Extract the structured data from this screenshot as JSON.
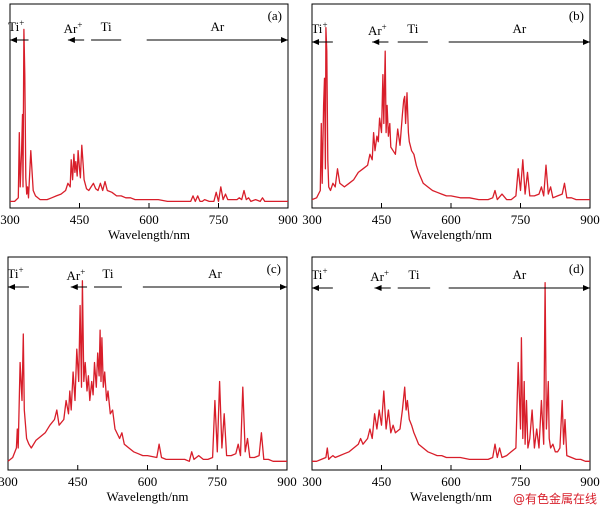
{
  "watermark": "@有色金属在线",
  "chart_data": [
    {
      "type": "line",
      "letter": "(a)",
      "xlabel": "Wavelength/nm",
      "ylabel": "",
      "xlim": [
        300,
        900
      ],
      "xticks": [
        "300",
        "450",
        "600",
        "750",
        "900"
      ],
      "grid": false,
      "series_color": "#d81e2a",
      "regions": [
        {
          "label": "Ti",
          "sup": "+",
          "from": 340,
          "to": 300,
          "arrowhead": "left"
        },
        {
          "label": "Ar",
          "sup": "+",
          "from": 460,
          "to": 425,
          "arrowhead": "left"
        },
        {
          "label": "Ti",
          "sup": "",
          "from": 475,
          "to": 540,
          "arrowhead": "none"
        },
        {
          "label": "Ar",
          "sup": "",
          "from": 595,
          "to": 900,
          "arrowhead": "right"
        }
      ],
      "baseline": 0.02,
      "x": [
        300,
        310,
        318,
        320,
        322,
        325,
        327,
        328,
        330,
        332,
        334,
        336,
        338,
        340,
        345,
        350,
        355,
        360,
        365,
        370,
        380,
        390,
        400,
        410,
        420,
        425,
        430,
        432,
        435,
        438,
        440,
        442,
        445,
        447,
        450,
        452,
        455,
        458,
        460,
        465,
        470,
        475,
        480,
        485,
        490,
        495,
        500,
        505,
        510,
        520,
        530,
        540,
        550,
        560,
        570,
        580,
        590,
        600,
        620,
        640,
        660,
        680,
        690,
        695,
        700,
        705,
        710,
        715,
        720,
        730,
        740,
        745,
        750,
        755,
        760,
        765,
        770,
        780,
        790,
        795,
        800,
        805,
        810,
        815,
        820,
        830,
        840,
        845,
        850,
        860,
        870,
        880,
        890,
        900
      ],
      "y": [
        0.02,
        0.02,
        0.04,
        0.4,
        0.1,
        0.3,
        0.5,
        0.1,
        0.97,
        0.72,
        0.15,
        0.06,
        0.1,
        0.04,
        0.3,
        0.08,
        0.05,
        0.04,
        0.03,
        0.03,
        0.03,
        0.04,
        0.05,
        0.06,
        0.08,
        0.12,
        0.1,
        0.25,
        0.14,
        0.28,
        0.18,
        0.24,
        0.16,
        0.3,
        0.2,
        0.15,
        0.33,
        0.22,
        0.14,
        0.09,
        0.08,
        0.1,
        0.12,
        0.09,
        0.08,
        0.12,
        0.08,
        0.13,
        0.08,
        0.07,
        0.05,
        0.05,
        0.04,
        0.04,
        0.03,
        0.03,
        0.03,
        0.03,
        0.03,
        0.02,
        0.02,
        0.02,
        0.02,
        0.05,
        0.02,
        0.05,
        0.02,
        0.02,
        0.03,
        0.02,
        0.02,
        0.07,
        0.02,
        0.1,
        0.03,
        0.06,
        0.03,
        0.03,
        0.03,
        0.04,
        0.03,
        0.08,
        0.03,
        0.04,
        0.02,
        0.03,
        0.02,
        0.04,
        0.02,
        0.02,
        0.02,
        0.02,
        0.02,
        0.02
      ]
    },
    {
      "type": "line",
      "letter": "(b)",
      "xlabel": "Wavelength/nm",
      "ylabel": "",
      "xlim": [
        300,
        900
      ],
      "xticks": [
        "300",
        "450",
        "600",
        "750",
        "900"
      ],
      "grid": false,
      "series_color": "#d81e2a",
      "regions": [
        {
          "label": "Ti",
          "sup": "+",
          "from": 345,
          "to": 300,
          "arrowhead": "left"
        },
        {
          "label": "Ar",
          "sup": "+",
          "from": 465,
          "to": 430,
          "arrowhead": "left"
        },
        {
          "label": "Ti",
          "sup": "",
          "from": 485,
          "to": 550,
          "arrowhead": "none"
        },
        {
          "label": "Ar",
          "sup": "",
          "from": 595,
          "to": 900,
          "arrowhead": "right"
        }
      ],
      "baseline": 0.03,
      "x": [
        300,
        310,
        318,
        320,
        322,
        325,
        327,
        329,
        330,
        332,
        334,
        336,
        340,
        345,
        350,
        355,
        360,
        370,
        380,
        390,
        400,
        410,
        420,
        425,
        430,
        433,
        436,
        440,
        443,
        446,
        450,
        453,
        455,
        458,
        460,
        462,
        465,
        468,
        470,
        475,
        480,
        485,
        490,
        495,
        498,
        500,
        502,
        505,
        508,
        510,
        515,
        520,
        525,
        530,
        540,
        550,
        560,
        570,
        580,
        590,
        600,
        620,
        640,
        660,
        680,
        690,
        695,
        700,
        710,
        720,
        730,
        740,
        745,
        750,
        755,
        760,
        765,
        770,
        780,
        790,
        795,
        800,
        805,
        810,
        815,
        820,
        830,
        840,
        845,
        850,
        860,
        870,
        880,
        890,
        900
      ],
      "y": [
        0.03,
        0.04,
        0.08,
        0.45,
        0.12,
        0.55,
        0.7,
        0.2,
        0.98,
        0.85,
        0.25,
        0.1,
        0.08,
        0.12,
        0.1,
        0.2,
        0.12,
        0.1,
        0.12,
        0.14,
        0.18,
        0.2,
        0.22,
        0.28,
        0.25,
        0.4,
        0.3,
        0.38,
        0.35,
        0.48,
        0.4,
        0.72,
        0.45,
        0.85,
        0.4,
        0.55,
        0.38,
        0.45,
        0.32,
        0.3,
        0.28,
        0.42,
        0.33,
        0.5,
        0.58,
        0.6,
        0.45,
        0.62,
        0.4,
        0.35,
        0.3,
        0.28,
        0.22,
        0.18,
        0.12,
        0.1,
        0.08,
        0.07,
        0.06,
        0.05,
        0.05,
        0.04,
        0.04,
        0.03,
        0.03,
        0.04,
        0.08,
        0.03,
        0.06,
        0.03,
        0.03,
        0.05,
        0.2,
        0.08,
        0.25,
        0.06,
        0.18,
        0.05,
        0.05,
        0.06,
        0.1,
        0.05,
        0.22,
        0.06,
        0.1,
        0.04,
        0.05,
        0.06,
        0.12,
        0.04,
        0.04,
        0.03,
        0.03,
        0.03,
        0.03
      ]
    },
    {
      "type": "line",
      "letter": "(c)",
      "xlabel": "Wavelength/nm",
      "ylabel": "",
      "xlim": [
        300,
        900
      ],
      "xticks": [
        "300",
        "450",
        "600",
        "750",
        "900"
      ],
      "grid": false,
      "series_color": "#d81e2a",
      "regions": [
        {
          "label": "Ti",
          "sup": "+",
          "from": 345,
          "to": 300,
          "arrowhead": "left"
        },
        {
          "label": "Ar",
          "sup": "+",
          "from": 470,
          "to": 435,
          "arrowhead": "left"
        },
        {
          "label": "Ti",
          "sup": "",
          "from": 485,
          "to": 545,
          "arrowhead": "none"
        },
        {
          "label": "Ar",
          "sup": "",
          "from": 590,
          "to": 900,
          "arrowhead": "right"
        }
      ],
      "baseline": 0.03,
      "x": [
        300,
        310,
        318,
        320,
        322,
        326,
        330,
        333,
        335,
        340,
        345,
        350,
        360,
        370,
        380,
        390,
        400,
        405,
        410,
        420,
        425,
        430,
        433,
        436,
        440,
        444,
        448,
        452,
        455,
        458,
        460,
        463,
        466,
        470,
        473,
        476,
        480,
        483,
        486,
        490,
        493,
        496,
        498,
        500,
        502,
        505,
        508,
        512,
        515,
        520,
        525,
        530,
        540,
        545,
        550,
        560,
        570,
        580,
        590,
        600,
        620,
        625,
        630,
        640,
        660,
        680,
        690,
        695,
        700,
        710,
        720,
        730,
        740,
        745,
        750,
        755,
        760,
        765,
        770,
        780,
        790,
        795,
        800,
        805,
        810,
        815,
        820,
        830,
        840,
        845,
        850,
        860,
        870,
        880,
        890,
        900
      ],
      "y": [
        0.03,
        0.05,
        0.1,
        0.2,
        0.1,
        0.55,
        0.35,
        0.7,
        0.3,
        0.15,
        0.12,
        0.1,
        0.14,
        0.16,
        0.18,
        0.22,
        0.25,
        0.3,
        0.22,
        0.25,
        0.35,
        0.28,
        0.4,
        0.3,
        0.5,
        0.35,
        0.62,
        0.45,
        0.85,
        0.42,
        0.98,
        0.45,
        0.55,
        0.4,
        0.48,
        0.35,
        0.45,
        0.38,
        0.55,
        0.42,
        0.6,
        0.48,
        0.72,
        0.45,
        0.68,
        0.42,
        0.5,
        0.35,
        0.4,
        0.28,
        0.3,
        0.2,
        0.15,
        0.18,
        0.12,
        0.1,
        0.08,
        0.07,
        0.06,
        0.06,
        0.05,
        0.12,
        0.05,
        0.04,
        0.04,
        0.04,
        0.03,
        0.08,
        0.04,
        0.06,
        0.04,
        0.04,
        0.05,
        0.35,
        0.08,
        0.45,
        0.1,
        0.28,
        0.06,
        0.06,
        0.07,
        0.12,
        0.06,
        0.42,
        0.08,
        0.15,
        0.05,
        0.05,
        0.06,
        0.18,
        0.04,
        0.04,
        0.03,
        0.03,
        0.03,
        0.03
      ]
    },
    {
      "type": "line",
      "letter": "(d)",
      "xlabel": "Wavelength/nm",
      "ylabel": "",
      "xlim": [
        300,
        900
      ],
      "xticks": [
        "300",
        "450",
        "600",
        "750",
        "900"
      ],
      "grid": false,
      "series_color": "#d81e2a",
      "regions": [
        {
          "label": "Ti",
          "sup": "+",
          "from": 345,
          "to": 300,
          "arrowhead": "left"
        },
        {
          "label": "Ar",
          "sup": "+",
          "from": 470,
          "to": 435,
          "arrowhead": "left"
        },
        {
          "label": "Ti",
          "sup": "",
          "from": 485,
          "to": 555,
          "arrowhead": "none"
        },
        {
          "label": "Ar",
          "sup": "",
          "from": 595,
          "to": 900,
          "arrowhead": "right"
        }
      ],
      "baseline": 0.03,
      "x": [
        300,
        310,
        320,
        330,
        333,
        336,
        340,
        345,
        350,
        360,
        370,
        380,
        390,
        400,
        405,
        410,
        420,
        425,
        430,
        435,
        440,
        445,
        450,
        455,
        460,
        465,
        470,
        475,
        480,
        490,
        495,
        500,
        503,
        506,
        510,
        515,
        520,
        525,
        530,
        540,
        550,
        560,
        570,
        580,
        590,
        600,
        620,
        640,
        660,
        680,
        690,
        695,
        700,
        705,
        710,
        720,
        730,
        740,
        745,
        750,
        752,
        755,
        758,
        760,
        763,
        766,
        770,
        775,
        780,
        785,
        790,
        795,
        800,
        803,
        806,
        810,
        812,
        815,
        820,
        825,
        830,
        835,
        840,
        843,
        846,
        850,
        860,
        870,
        880,
        890,
        900
      ],
      "y": [
        0.03,
        0.03,
        0.04,
        0.05,
        0.1,
        0.04,
        0.05,
        0.06,
        0.05,
        0.06,
        0.07,
        0.08,
        0.1,
        0.12,
        0.15,
        0.12,
        0.15,
        0.2,
        0.15,
        0.28,
        0.2,
        0.3,
        0.22,
        0.4,
        0.2,
        0.3,
        0.18,
        0.22,
        0.18,
        0.2,
        0.3,
        0.42,
        0.3,
        0.35,
        0.25,
        0.22,
        0.18,
        0.15,
        0.12,
        0.1,
        0.08,
        0.07,
        0.06,
        0.06,
        0.05,
        0.05,
        0.05,
        0.04,
        0.04,
        0.04,
        0.05,
        0.12,
        0.05,
        0.1,
        0.05,
        0.06,
        0.08,
        0.1,
        0.55,
        0.2,
        0.68,
        0.15,
        0.45,
        0.12,
        0.35,
        0.1,
        0.15,
        0.3,
        0.1,
        0.2,
        0.1,
        0.35,
        0.12,
        0.97,
        0.2,
        0.45,
        0.15,
        0.1,
        0.12,
        0.08,
        0.08,
        0.1,
        0.35,
        0.12,
        0.25,
        0.06,
        0.05,
        0.04,
        0.04,
        0.03,
        0.03
      ]
    }
  ]
}
